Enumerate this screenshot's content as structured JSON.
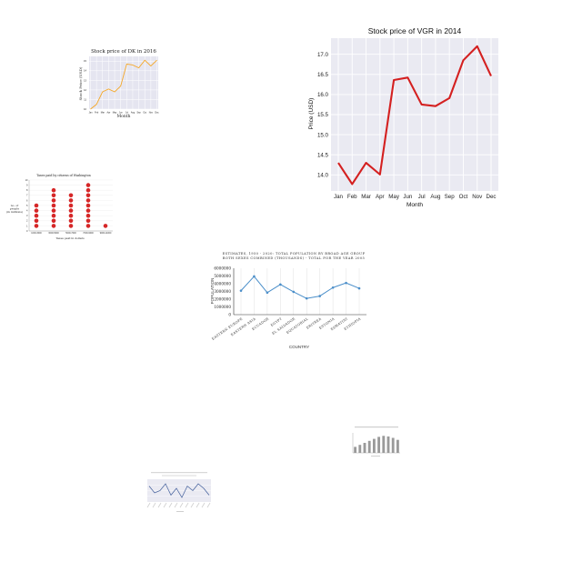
{
  "chart_data": [
    {
      "id": "dk",
      "type": "line",
      "title": "Stock price of DK in 2016",
      "xlabel": "Month",
      "ylabel": "Stock Price (USD)",
      "categories": [
        "Jan",
        "Feb",
        "Mar",
        "Apr",
        "May",
        "Jun",
        "Jul",
        "Aug",
        "Sep",
        "Oct",
        "Nov",
        "Dec"
      ],
      "values": [
        10,
        10.5,
        11.8,
        12.1,
        11.8,
        12.4,
        14.7,
        14.6,
        14.3,
        15.1,
        14.5,
        15.1
      ],
      "ylim": [
        10,
        15.5
      ],
      "yticks": [
        10,
        11,
        12,
        13,
        14,
        15
      ],
      "color": "#f5a623",
      "background": "#e5e5f0",
      "grid": true
    },
    {
      "id": "vgr",
      "type": "line",
      "title": "Stock price of VGR in 2014",
      "xlabel": "Month",
      "ylabel": "Price (USD)",
      "categories": [
        "Jan",
        "Feb",
        "Mar",
        "Apr",
        "May",
        "Jun",
        "Jul",
        "Aug",
        "Sep",
        "Oct",
        "Nov",
        "Dec"
      ],
      "values": [
        14.3,
        13.77,
        14.3,
        14.01,
        16.36,
        16.42,
        15.75,
        15.71,
        15.91,
        16.85,
        17.2,
        16.46
      ],
      "ylim": [
        13.6,
        17.4
      ],
      "yticks": [
        14.0,
        14.5,
        15.0,
        15.5,
        16.0,
        16.5,
        17.0
      ],
      "color": "#d42020",
      "background": "#eaeaf2",
      "grid": true
    },
    {
      "id": "taxes",
      "type": "scatter",
      "title": "Taxes paid by citizens of Washington",
      "xlabel": "Taxes paid in dollars",
      "ylabel": "no. of people (in millions)",
      "categories": [
        "1000-3000",
        "3000-5000",
        "5000-7000",
        "7000-9000",
        "9000-11000"
      ],
      "values": [
        5,
        8,
        7,
        9,
        1
      ],
      "ylim": [
        0,
        10
      ],
      "yticks": [
        0,
        1,
        2,
        3,
        4,
        5,
        6,
        7,
        8,
        9,
        10
      ],
      "color": "#d62728"
    },
    {
      "id": "population",
      "type": "line",
      "title_lines": [
        "ESTIMATES, 1950 - 2020: TOTAL POPULATION BY BROAD AGE GROUP",
        "BOTH SEXES COMBINED (THOUSANDS) - TOTAL FOR THE YEAR 2005"
      ],
      "xlabel": "COUNTRY",
      "ylabel": "POPULATION",
      "categories": [
        "EASTERN EUROPE",
        "EASTERN ASIA",
        "ECUADOR",
        "EGYPT",
        "EL SALVADOR",
        "EQUATORIAL",
        "ERITREA",
        "ESTONIA",
        "ESWATINI",
        "ETHIOPIA"
      ],
      "values": [
        3100000,
        4950000,
        2850000,
        3900000,
        2950000,
        2100000,
        2400000,
        3500000,
        4100000,
        3400000
      ],
      "ylim": [
        0,
        6000000
      ],
      "yticks": [
        0,
        1000000,
        2000000,
        3000000,
        4000000,
        5000000,
        6000000
      ],
      "color": "#4a8ec9"
    },
    {
      "id": "small_bar",
      "type": "bar",
      "values": [
        3,
        4,
        5,
        6,
        7,
        8,
        8.5,
        8.2,
        7.5,
        6.5
      ],
      "ylim": [
        0,
        10
      ],
      "color": "#9a9a9a"
    },
    {
      "id": "small_line",
      "type": "line",
      "values": [
        7,
        4,
        5,
        8,
        3,
        6,
        2,
        7,
        5,
        8,
        6,
        3
      ],
      "ylim": [
        0,
        10
      ],
      "color": "#3f5c9a",
      "background": "#eaeaf2",
      "grid": true
    }
  ]
}
